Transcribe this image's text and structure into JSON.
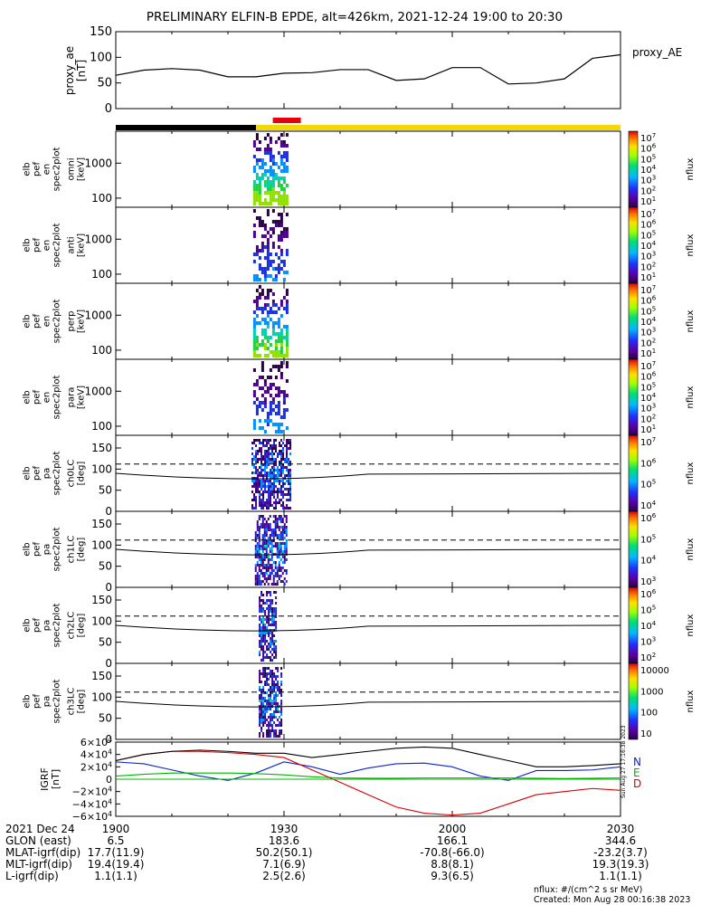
{
  "title": "PRELIMINARY ELFIN-B EPDE, alt=426km, 2021-12-24 19:00 to 20:30",
  "colors": {
    "ae_line": "#000000",
    "bar_black": "#000000",
    "bar_yellow": "#f5d800",
    "bar_red": "#e8000b",
    "grf_n": "#0a22d0",
    "grf_e": "#00b400",
    "grf_d": "#d40000",
    "grf_total": "#000000"
  },
  "chart_data": [
    {
      "type": "line",
      "name": "proxy_ae",
      "ylabel": "proxy_ae [nT]",
      "yticks": [
        "150",
        "100",
        "50",
        "0"
      ],
      "ylim": [
        0,
        150
      ],
      "xlim": [
        0,
        90
      ],
      "legend": "proxy_AE",
      "x_minutes": [
        0,
        5,
        10,
        15,
        20,
        25,
        30,
        35,
        40,
        45,
        50,
        55,
        60,
        65,
        70,
        75,
        80,
        85,
        90
      ],
      "values": [
        65,
        75,
        78,
        75,
        62,
        62,
        69,
        70,
        76,
        76,
        55,
        58,
        80,
        80,
        48,
        50,
        58,
        98,
        105
      ]
    },
    {
      "type": "bar",
      "name": "science_zone_bar",
      "segments": [
        {
          "start_min": 0,
          "end_min": 25,
          "color": "black"
        },
        {
          "start_min": 25,
          "end_min": 90,
          "color": "yellow"
        },
        {
          "start_min": 28,
          "end_min": 33,
          "color": "red"
        }
      ]
    },
    {
      "type": "heatmap",
      "name": "spec_omni",
      "ylabel": "elb pef en spec2plot omni [keV]",
      "yticks": [
        "1000",
        "100"
      ],
      "colorbar": {
        "label": "nflux",
        "ticks": [
          "10^7",
          "10^6",
          "10^5",
          "10^4",
          "10^3",
          "10^2",
          "10^1"
        ]
      }
    },
    {
      "type": "heatmap",
      "name": "spec_anti",
      "ylabel": "elb pef en spec2plot anti [keV]",
      "yticks": [
        "1000",
        "100"
      ],
      "colorbar": {
        "label": "nflux",
        "ticks": [
          "10^7",
          "10^6",
          "10^5",
          "10^4",
          "10^3",
          "10^2",
          "10^1"
        ]
      }
    },
    {
      "type": "heatmap",
      "name": "spec_perp",
      "ylabel": "elb pef en spec2plot perp [keV]",
      "yticks": [
        "1000",
        "100"
      ],
      "colorbar": {
        "label": "nflux",
        "ticks": [
          "10^7",
          "10^6",
          "10^5",
          "10^4",
          "10^3",
          "10^2",
          "10^1"
        ]
      }
    },
    {
      "type": "heatmap",
      "name": "spec_para",
      "ylabel": "elb pef en spec2plot para [keV]",
      "yticks": [
        "1000",
        "100"
      ],
      "colorbar": {
        "label": "nflux",
        "ticks": [
          "10^7",
          "10^6",
          "10^5",
          "10^4",
          "10^3",
          "10^2",
          "10^1"
        ]
      }
    },
    {
      "type": "heatmap",
      "name": "pa_ch0",
      "ylabel": "elb pef pa spec2plot ch0LC [deg]",
      "yticks": [
        "150",
        "100",
        "50",
        "0"
      ],
      "colorbar": {
        "label": "nflux",
        "ticks": [
          "10^7",
          "10^6",
          "10^5",
          "10^4"
        ]
      }
    },
    {
      "type": "heatmap",
      "name": "pa_ch1",
      "ylabel": "elb pef pa spec2plot ch1LC [deg]",
      "yticks": [
        "150",
        "100",
        "50",
        "0"
      ],
      "colorbar": {
        "label": "nflux",
        "ticks": [
          "10^6",
          "10^5",
          "10^4",
          "10^3"
        ]
      }
    },
    {
      "type": "heatmap",
      "name": "pa_ch2",
      "ylabel": "elb pef pa spec2plot ch2LC [deg]",
      "yticks": [
        "150",
        "100",
        "50",
        "0"
      ],
      "colorbar": {
        "label": "nflux",
        "ticks": [
          "10^6",
          "10^5",
          "10^4",
          "10^3",
          "10^2"
        ]
      }
    },
    {
      "type": "heatmap",
      "name": "pa_ch3",
      "ylabel": "elb pef pa spec2plot ch3LC [deg]",
      "yticks": [
        "150",
        "100",
        "50",
        "0"
      ],
      "colorbar": {
        "label": "nflux",
        "ticks": [
          "10000",
          "1000",
          "100",
          "10"
        ]
      }
    },
    {
      "type": "line",
      "name": "igrf",
      "ylabel": "IGRF [nT]",
      "yticks": [
        "6×10^4",
        "4×10^4",
        "2×10^4",
        "0",
        "−2×10^4",
        "−4×10^4",
        "−6×10^4"
      ],
      "ylim": [
        -60000,
        60000
      ],
      "xlim": [
        0,
        90
      ],
      "legend": [
        "N",
        "E",
        "D"
      ],
      "x_minutes": [
        0,
        5,
        10,
        15,
        20,
        25,
        30,
        35,
        40,
        45,
        50,
        55,
        60,
        65,
        70,
        75,
        80,
        85,
        90
      ],
      "series": [
        {
          "name": "N",
          "values": [
            28000,
            25000,
            15000,
            5000,
            -2000,
            10000,
            28000,
            20000,
            8000,
            18000,
            25000,
            26000,
            20000,
            5000,
            -2000,
            14000,
            14000,
            15000,
            20000
          ]
        },
        {
          "name": "E",
          "values": [
            5000,
            8000,
            10000,
            10000,
            10000,
            9000,
            7000,
            4000,
            2000,
            1500,
            1500,
            2000,
            2000,
            2000,
            2000,
            1500,
            1000,
            1500,
            2000
          ]
        },
        {
          "name": "D",
          "values": [
            30000,
            40000,
            45000,
            45000,
            43000,
            40000,
            35000,
            15000,
            -5000,
            -25000,
            -45000,
            -55000,
            -58000,
            -55000,
            -40000,
            -25000,
            -20000,
            -15000,
            -18000
          ]
        },
        {
          "values": [
            30000,
            40000,
            45000,
            47000,
            45000,
            42000,
            42000,
            35000,
            40000,
            45000,
            50000,
            52000,
            50000,
            40000,
            30000,
            20000,
            20000,
            22000,
            25000
          ]
        }
      ]
    }
  ],
  "xaxis": {
    "ticks": [
      "1900",
      "1930",
      "2000",
      "2030"
    ]
  },
  "orbit_table": {
    "rows": [
      {
        "label": "2021 Dec 24",
        "values": [
          "1900",
          "1930",
          "2000",
          "2030"
        ]
      },
      {
        "label": "GLON (east)",
        "values": [
          "6.5",
          "183.6",
          "166.1",
          "344.6"
        ]
      },
      {
        "label": "MLAT-igrf(dip)",
        "values": [
          "17.7(11.9)",
          "50.2(50.1)",
          "-70.8(-66.0)",
          "-23.2(3.7)"
        ]
      },
      {
        "label": "MLT-igrf(dip)",
        "values": [
          "19.4(19.4)",
          "7.1(6.9)",
          "8.8(8.1)",
          "19.3(19.3)"
        ]
      },
      {
        "label": "L-igrf(dip)",
        "values": [
          "1.1(1.1)",
          "2.5(2.6)",
          "9.3(6.5)",
          "1.1(1.1)"
        ]
      }
    ]
  },
  "footer": {
    "units": "nflux: #/(cm^2 s sr MeV)",
    "created": "Created: Mon Aug 28 00:16:38 2023",
    "vertical_stamp": "Sun Aug 27 17:16:38 2023"
  }
}
